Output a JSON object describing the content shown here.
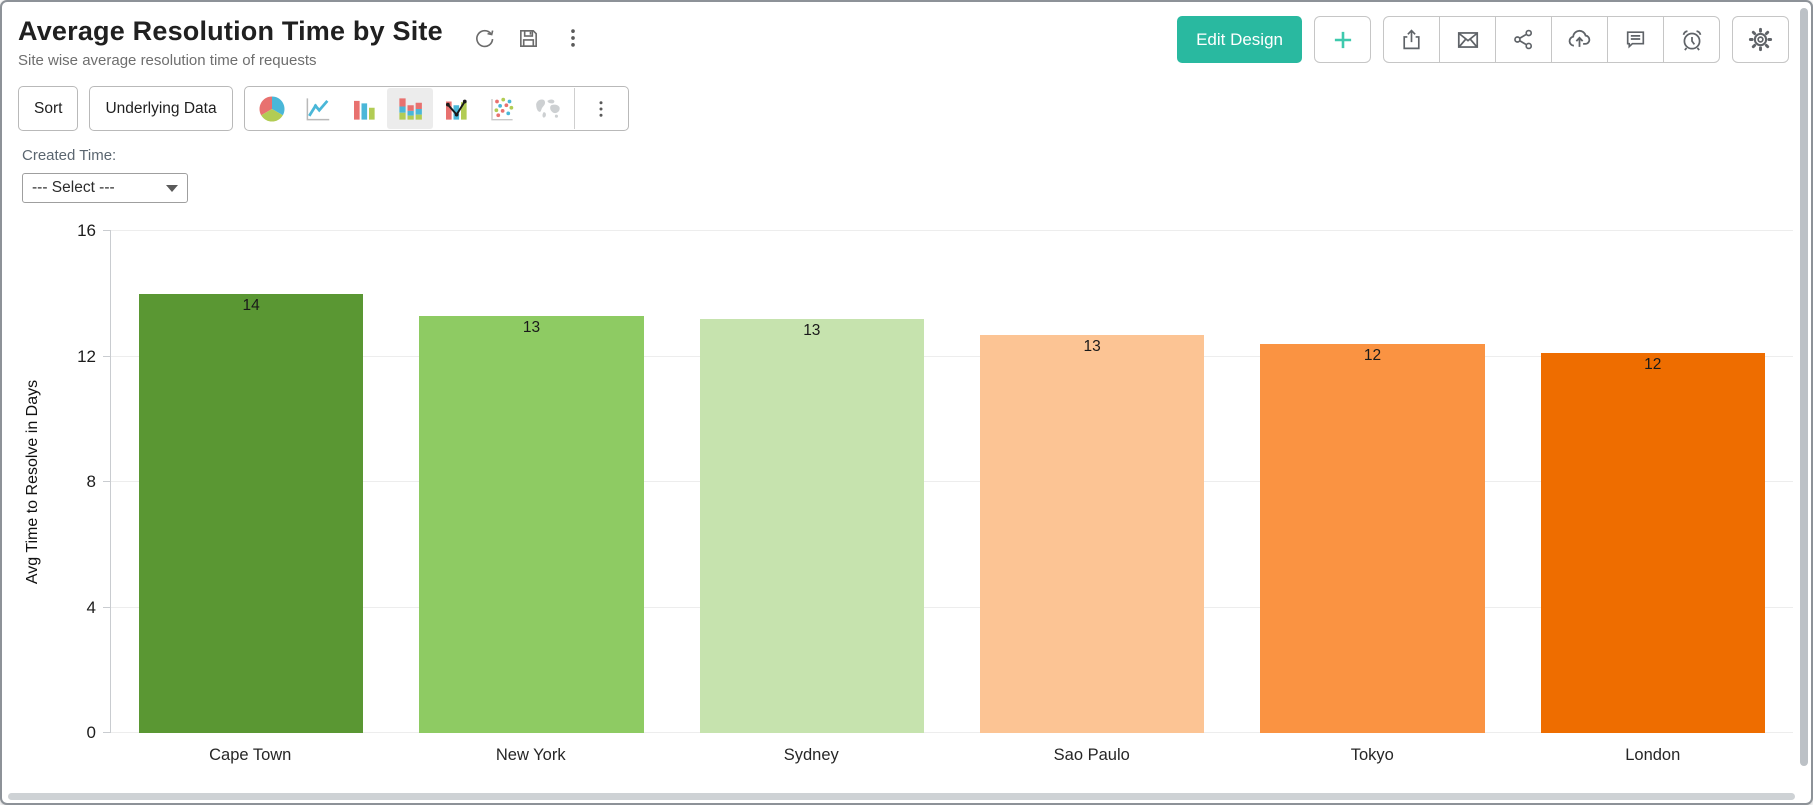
{
  "header": {
    "title": "Average Resolution Time by Site",
    "subtitle": "Site wise average resolution time of requests",
    "title_icons": [
      "refresh-icon",
      "save-icon",
      "more-vertical-icon"
    ],
    "edit_design_label": "Edit Design",
    "add_label": "+",
    "action_icons": [
      "export-icon",
      "email-icon",
      "share-icon",
      "cloud-upload-icon",
      "comment-icon",
      "alarm-clock-icon",
      "gear-icon"
    ],
    "accent_color": "#29b9a0"
  },
  "toolbar": {
    "sort_label": "Sort",
    "underlying_data_label": "Underlying Data",
    "chart_types": [
      {
        "name": "pie-chart-icon",
        "selected": false
      },
      {
        "name": "line-chart-icon",
        "selected": false
      },
      {
        "name": "bar-chart-icon",
        "selected": false
      },
      {
        "name": "stacked-bar-chart-icon",
        "selected": true
      },
      {
        "name": "combo-chart-icon",
        "selected": false
      },
      {
        "name": "scatter-chart-icon",
        "selected": false
      },
      {
        "name": "map-chart-icon",
        "selected": false
      }
    ],
    "chart_type_more_icon": "more-vertical-icon",
    "icon_palette": {
      "red": "#e8716f",
      "blue": "#4ab7d8",
      "green": "#b2cc54",
      "map_gray": "#cdd0d2"
    }
  },
  "filter": {
    "label": "Created Time:",
    "selected_value": "--- Select ---"
  },
  "chart_data": {
    "type": "bar",
    "title": "Average Resolution Time by Site",
    "categories": [
      "Cape Town",
      "New York",
      "Sydney",
      "Sao Paulo",
      "Tokyo",
      "London"
    ],
    "values": [
      14,
      13.3,
      13.2,
      12.7,
      12.4,
      12.1
    ],
    "labels": [
      "14",
      "13",
      "13",
      "13",
      "12",
      "12"
    ],
    "bar_colors": [
      "#5a9733",
      "#8ecb63",
      "#c6e3ae",
      "#fcc494",
      "#fa9342",
      "#ee6d00"
    ],
    "xlabel": "",
    "ylabel": "Avg Time to Resolve in Days",
    "ylim": [
      0,
      16
    ],
    "yticks": [
      0,
      4,
      8,
      12,
      16
    ],
    "grid": true,
    "legend": false
  }
}
